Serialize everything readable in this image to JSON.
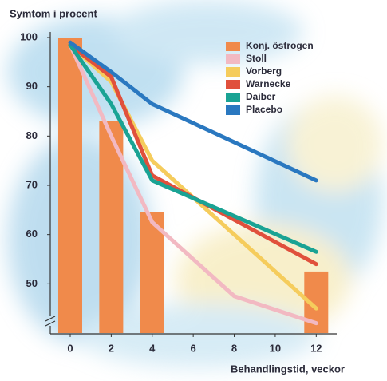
{
  "chart_data": {
    "type": "line",
    "title": "Symtom i procent",
    "x_label": "Behandlingstid, veckor",
    "xlim": [
      -1,
      13
    ],
    "xticks": [
      0,
      2,
      4,
      6,
      8,
      10,
      12
    ],
    "ylim": [
      40,
      100
    ],
    "yticks": [
      50,
      60,
      70,
      80,
      90,
      100
    ],
    "legend": "top-right",
    "series": [
      {
        "name": "Konj. östrogen",
        "type": "bar",
        "color": "#f08a4b",
        "x": [
          0,
          2,
          4,
          12
        ],
        "values": [
          100,
          83,
          64.5,
          52.5
        ]
      },
      {
        "name": "Stoll",
        "type": "line",
        "color": "#f2b9c2",
        "x": [
          0,
          2,
          4,
          8,
          12
        ],
        "values": [
          98.5,
          80,
          62.5,
          47.5,
          42
        ]
      },
      {
        "name": "Vorberg",
        "type": "line",
        "color": "#f5cc5c",
        "x": [
          0,
          2,
          4,
          12
        ],
        "values": [
          98.5,
          91,
          75,
          45
        ]
      },
      {
        "name": "Warnecke",
        "type": "line",
        "color": "#e0503c",
        "x": [
          0,
          2,
          4,
          12
        ],
        "values": [
          98.5,
          92,
          72,
          54
        ]
      },
      {
        "name": "Daiber",
        "type": "line",
        "color": "#1aa394",
        "x": [
          0,
          2,
          4,
          12
        ],
        "values": [
          98.5,
          86.5,
          71,
          56.5
        ]
      },
      {
        "name": "Placebo",
        "type": "line",
        "color": "#2a78c0",
        "x": [
          0,
          2,
          4,
          12
        ],
        "values": [
          99,
          93,
          86.5,
          71
        ]
      }
    ]
  }
}
